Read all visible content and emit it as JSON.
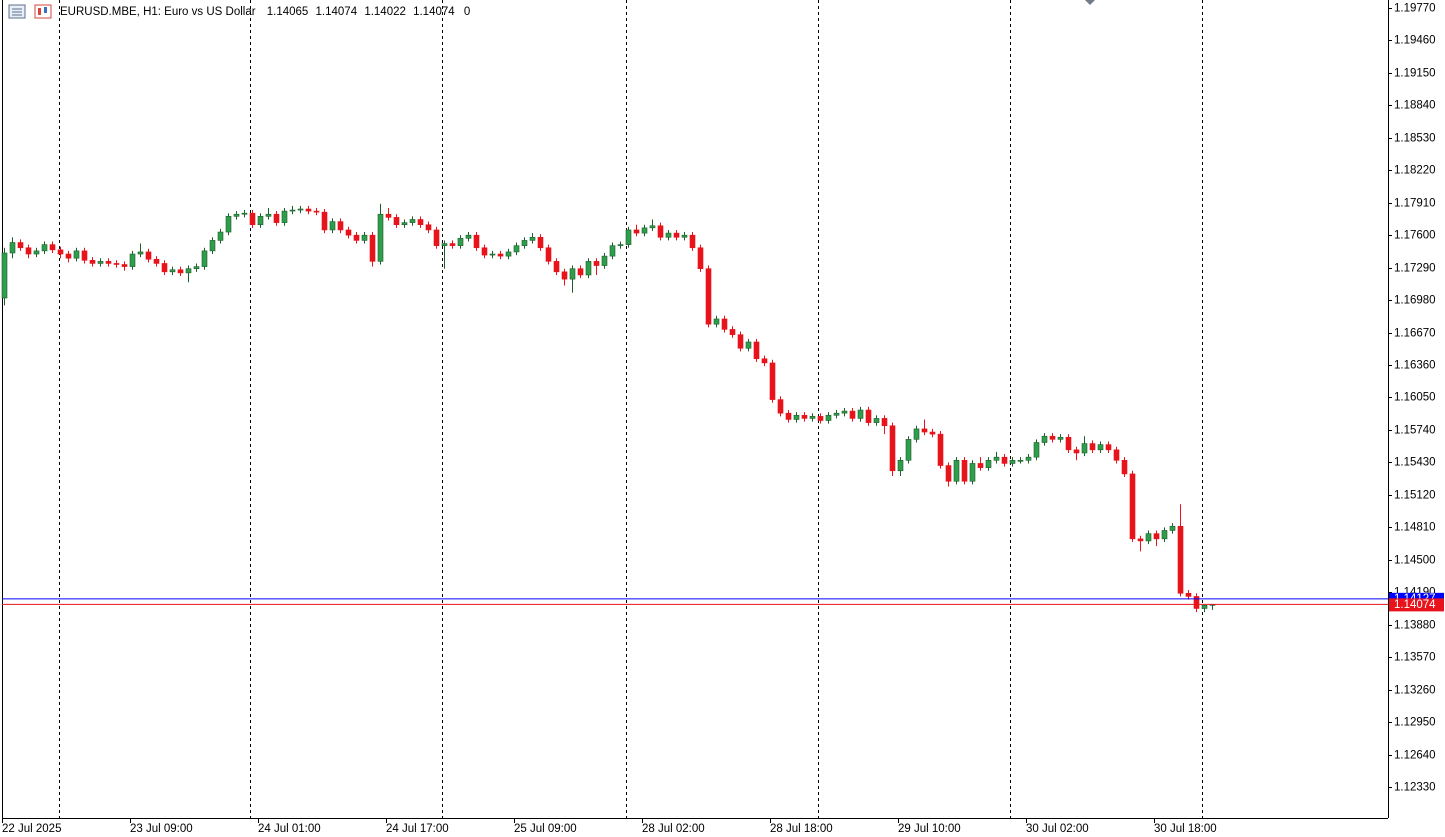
{
  "chart_data": {
    "type": "candlestick",
    "title": "EURUSD.MBE, H1:  Euro vs US Dollar",
    "info_suffix": "0",
    "up_color": "#2e9e4a",
    "down_color": "#e8131b",
    "ask_color": "#0000ff",
    "bid_color": "#e8131b",
    "ask": 1.14127,
    "ylim": [
      1.12034,
      1.19846
    ],
    "yticks": [
      {
        "value": 1.1977,
        "label": "1.19770"
      },
      {
        "value": 1.1946,
        "label": "1.19460"
      },
      {
        "value": 1.1915,
        "label": "1.19150"
      },
      {
        "value": 1.1884,
        "label": "1.18840"
      },
      {
        "value": 1.1853,
        "label": "1.18530"
      },
      {
        "value": 1.1822,
        "label": "1.18220"
      },
      {
        "value": 1.1791,
        "label": "1.17910"
      },
      {
        "value": 1.176,
        "label": "1.17600"
      },
      {
        "value": 1.1729,
        "label": "1.17290"
      },
      {
        "value": 1.1698,
        "label": "1.16980"
      },
      {
        "value": 1.1667,
        "label": "1.16670"
      },
      {
        "value": 1.1636,
        "label": "1.16360"
      },
      {
        "value": 1.1605,
        "label": "1.16050"
      },
      {
        "value": 1.1574,
        "label": "1.15740"
      },
      {
        "value": 1.1543,
        "label": "1.15430"
      },
      {
        "value": 1.1512,
        "label": "1.15120"
      },
      {
        "value": 1.1481,
        "label": "1.14810"
      },
      {
        "value": 1.145,
        "label": "1.14500"
      },
      {
        "value": 1.1419,
        "label": "1.14190"
      },
      {
        "value": 1.1388,
        "label": "1.13880"
      },
      {
        "value": 1.1357,
        "label": "1.13570"
      },
      {
        "value": 1.1326,
        "label": "1.13260"
      },
      {
        "value": 1.1295,
        "label": "1.12950"
      },
      {
        "value": 1.1264,
        "label": "1.12640"
      },
      {
        "value": 1.1233,
        "label": "1.12330"
      }
    ],
    "categories": [
      "22 Jul 2025",
      null,
      null,
      null,
      null,
      null,
      null,
      null,
      null,
      null,
      null,
      null,
      null,
      null,
      null,
      null,
      "23 Jul 09:00",
      null,
      null,
      null,
      null,
      null,
      null,
      null,
      null,
      null,
      null,
      null,
      null,
      null,
      null,
      null,
      "24 Jul 01:00",
      null,
      null,
      null,
      null,
      null,
      null,
      null,
      null,
      null,
      null,
      null,
      null,
      null,
      null,
      null,
      "24 Jul 17:00",
      null,
      null,
      null,
      null,
      null,
      null,
      null,
      null,
      null,
      null,
      null,
      null,
      null,
      null,
      null,
      "25 Jul 09:00",
      null,
      null,
      null,
      null,
      null,
      null,
      null,
      null,
      null,
      null,
      null,
      null,
      null,
      null,
      null,
      "28 Jul 02:00",
      null,
      null,
      null,
      null,
      null,
      null,
      null,
      null,
      null,
      null,
      null,
      null,
      null,
      null,
      null,
      "28 Jul 18:00",
      null,
      null,
      null,
      null,
      null,
      null,
      null,
      null,
      null,
      null,
      null,
      null,
      null,
      null,
      null,
      "29 Jul 10:00",
      null,
      null,
      null,
      null,
      null,
      null,
      null,
      null,
      null,
      null,
      null,
      null,
      null,
      null,
      null,
      "30 Jul 02:00",
      null,
      null,
      null,
      null,
      null,
      null,
      null,
      null,
      null,
      null,
      null,
      null,
      null,
      null,
      null,
      "30 Jul 18:00",
      null,
      null,
      null,
      null,
      null,
      null,
      null
    ],
    "open": [
      1.17,
      1.1743,
      1.1753,
      1.1748,
      1.1742,
      1.1745,
      1.1751,
      1.1746,
      1.1742,
      1.1738,
      1.1745,
      1.1736,
      1.1733,
      1.1735,
      1.1733,
      1.1732,
      1.173,
      1.1742,
      1.1744,
      1.1737,
      1.1733,
      1.1725,
      1.1727,
      1.1724,
      1.1728,
      1.173,
      1.1745,
      1.1755,
      1.1763,
      1.1778,
      1.178,
      1.1781,
      1.177,
      1.1778,
      1.178,
      1.1772,
      1.1783,
      1.1784,
      1.1785,
      1.1783,
      1.1782,
      1.1765,
      1.1773,
      1.1765,
      1.176,
      1.1755,
      1.176,
      1.1735,
      1.178,
      1.1777,
      1.177,
      1.1772,
      1.1775,
      1.177,
      1.1765,
      1.175,
      1.1752,
      1.175,
      1.1757,
      1.176,
      1.1748,
      1.1741,
      1.1742,
      1.174,
      1.1744,
      1.175,
      1.1755,
      1.1758,
      1.1748,
      1.1735,
      1.1725,
      1.1718,
      1.1728,
      1.1722,
      1.1735,
      1.1731,
      1.174,
      1.175,
      1.1751,
      1.1765,
      1.1762,
      1.1767,
      1.1769,
      1.1758,
      1.1762,
      1.1758,
      1.176,
      1.1748,
      1.1728,
      1.1675,
      1.168,
      1.167,
      1.1665,
      1.1652,
      1.1658,
      1.1642,
      1.1638,
      1.1603,
      1.159,
      1.1584,
      1.1588,
      1.1585,
      1.1587,
      1.1583,
      1.1588,
      1.159,
      1.1592,
      1.1585,
      1.1593,
      1.1581,
      1.1585,
      1.1578,
      1.1535,
      1.1545,
      1.1565,
      1.1575,
      1.1572,
      1.157,
      1.154,
      1.1525,
      1.1545,
      1.1525,
      1.1542,
      1.1538,
      1.1545,
      1.1548,
      1.1542,
      1.1545,
      1.1545,
      1.1548,
      1.1562,
      1.1568,
      1.1565,
      1.1567,
      1.1555,
      1.1552,
      1.1561,
      1.1555,
      1.156,
      1.1555,
      1.1545,
      1.1532,
      1.147,
      1.1468,
      1.1475,
      1.147,
      1.1478,
      1.1482,
      1.1418,
      1.1415,
      1.14035,
      1.14065
    ],
    "high": [
      1.1748,
      1.1758,
      1.1756,
      1.1751,
      1.1748,
      1.1754,
      1.1754,
      1.1749,
      1.1745,
      1.1748,
      1.1748,
      1.1739,
      1.1738,
      1.1738,
      1.1736,
      1.1735,
      1.1745,
      1.1752,
      1.1747,
      1.174,
      1.1736,
      1.173,
      1.173,
      1.1731,
      1.1733,
      1.1748,
      1.1758,
      1.1766,
      1.1781,
      1.1783,
      1.1784,
      1.1784,
      1.1781,
      1.1786,
      1.1783,
      1.1786,
      1.1788,
      1.1788,
      1.1788,
      1.1786,
      1.1785,
      1.1776,
      1.1776,
      1.1768,
      1.1763,
      1.1763,
      1.1763,
      1.179,
      1.1786,
      1.178,
      1.1775,
      1.1778,
      1.1778,
      1.1773,
      1.1768,
      1.1755,
      1.1755,
      1.176,
      1.1763,
      1.1763,
      1.1751,
      1.1745,
      1.1745,
      1.1747,
      1.1753,
      1.1758,
      1.1762,
      1.1761,
      1.1751,
      1.1738,
      1.1728,
      1.1731,
      1.1731,
      1.1738,
      1.1738,
      1.1743,
      1.1753,
      1.1754,
      1.1768,
      1.177,
      1.177,
      1.1775,
      1.1772,
      1.1765,
      1.1765,
      1.1763,
      1.1763,
      1.1751,
      1.1731,
      1.1683,
      1.1683,
      1.1673,
      1.1668,
      1.1661,
      1.1661,
      1.1645,
      1.1641,
      1.1606,
      1.1593,
      1.1591,
      1.1591,
      1.159,
      1.159,
      1.1591,
      1.1593,
      1.1595,
      1.1595,
      1.1596,
      1.1596,
      1.1588,
      1.1588,
      1.1581,
      1.1548,
      1.1568,
      1.1578,
      1.1584,
      1.1575,
      1.1573,
      1.1543,
      1.1548,
      1.1548,
      1.1545,
      1.1548,
      1.1548,
      1.1553,
      1.1551,
      1.1548,
      1.1548,
      1.1551,
      1.1565,
      1.1571,
      1.1571,
      1.157,
      1.157,
      1.1558,
      1.1568,
      1.1564,
      1.1563,
      1.1563,
      1.1558,
      1.1548,
      1.1535,
      1.1473,
      1.1478,
      1.1478,
      1.1481,
      1.1485,
      1.1503,
      1.1421,
      1.1418,
      1.14068,
      1.14074
    ],
    "low": [
      1.1693,
      1.1738,
      1.1745,
      1.1738,
      1.1739,
      1.1742,
      1.1743,
      1.1738,
      1.1734,
      1.1735,
      1.1733,
      1.173,
      1.173,
      1.173,
      1.1729,
      1.1726,
      1.1727,
      1.1739,
      1.1734,
      1.173,
      1.1722,
      1.1722,
      1.1721,
      1.1715,
      1.1725,
      1.1727,
      1.1742,
      1.1752,
      1.176,
      1.1775,
      1.1777,
      1.1767,
      1.1767,
      1.1775,
      1.1769,
      1.1769,
      1.178,
      1.1781,
      1.178,
      1.1779,
      1.1762,
      1.1762,
      1.1762,
      1.1757,
      1.1752,
      1.1752,
      1.173,
      1.1732,
      1.1774,
      1.1767,
      1.1767,
      1.1769,
      1.1767,
      1.1762,
      1.1747,
      1.1728,
      1.1747,
      1.1747,
      1.1754,
      1.1745,
      1.1738,
      1.1738,
      1.1737,
      1.1737,
      1.1741,
      1.1747,
      1.1752,
      1.1745,
      1.1732,
      1.1722,
      1.1712,
      1.1705,
      1.1719,
      1.1719,
      1.1722,
      1.1728,
      1.1737,
      1.1747,
      1.1748,
      1.1759,
      1.1759,
      1.1764,
      1.1755,
      1.1755,
      1.1755,
      1.1755,
      1.1745,
      1.1725,
      1.1672,
      1.1672,
      1.1667,
      1.1662,
      1.1649,
      1.1649,
      1.1639,
      1.1635,
      1.16,
      1.1587,
      1.1581,
      1.1581,
      1.1582,
      1.1582,
      1.158,
      1.158,
      1.1585,
      1.1587,
      1.1582,
      1.1582,
      1.1578,
      1.1578,
      1.157,
      1.153,
      1.153,
      1.1542,
      1.1562,
      1.1569,
      1.1567,
      1.1537,
      1.152,
      1.1522,
      1.1522,
      1.1522,
      1.1535,
      1.1535,
      1.1542,
      1.1539,
      1.1539,
      1.1542,
      1.1542,
      1.1545,
      1.1559,
      1.1562,
      1.1562,
      1.1552,
      1.1545,
      1.1549,
      1.1552,
      1.1552,
      1.1552,
      1.1542,
      1.1529,
      1.1467,
      1.1458,
      1.1465,
      1.1463,
      1.1467,
      1.1475,
      1.1415,
      1.1412,
      1.14,
      1.14,
      1.14022
    ],
    "close": [
      1.1743,
      1.1753,
      1.1748,
      1.1742,
      1.1745,
      1.1751,
      1.1746,
      1.1742,
      1.1738,
      1.1745,
      1.1736,
      1.1733,
      1.1735,
      1.1733,
      1.1732,
      1.173,
      1.1742,
      1.1744,
      1.1737,
      1.1733,
      1.1725,
      1.1727,
      1.1724,
      1.1728,
      1.173,
      1.1745,
      1.1755,
      1.1763,
      1.1778,
      1.178,
      1.1781,
      1.177,
      1.1778,
      1.178,
      1.1772,
      1.1783,
      1.1784,
      1.1785,
      1.1783,
      1.1782,
      1.1765,
      1.1773,
      1.1765,
      1.176,
      1.1755,
      1.176,
      1.1735,
      1.178,
      1.1777,
      1.177,
      1.1772,
      1.1775,
      1.177,
      1.1765,
      1.175,
      1.1752,
      1.175,
      1.1757,
      1.176,
      1.1748,
      1.1741,
      1.1742,
      1.174,
      1.1744,
      1.175,
      1.1755,
      1.1758,
      1.1748,
      1.1735,
      1.1725,
      1.1718,
      1.1728,
      1.1722,
      1.1735,
      1.1731,
      1.174,
      1.175,
      1.1751,
      1.1765,
      1.1762,
      1.1767,
      1.1769,
      1.1758,
      1.1762,
      1.1758,
      1.176,
      1.1748,
      1.1728,
      1.1675,
      1.168,
      1.167,
      1.1665,
      1.1652,
      1.1658,
      1.1642,
      1.1638,
      1.1603,
      1.159,
      1.1584,
      1.1588,
      1.1585,
      1.1587,
      1.1583,
      1.1588,
      1.159,
      1.1592,
      1.1585,
      1.1593,
      1.1581,
      1.1585,
      1.1578,
      1.1535,
      1.1545,
      1.1565,
      1.1575,
      1.1572,
      1.157,
      1.154,
      1.1525,
      1.1545,
      1.1525,
      1.1542,
      1.1538,
      1.1545,
      1.1548,
      1.1542,
      1.1545,
      1.1545,
      1.1548,
      1.1562,
      1.1568,
      1.1565,
      1.1567,
      1.1555,
      1.1552,
      1.1561,
      1.1555,
      1.156,
      1.1555,
      1.1545,
      1.1532,
      1.147,
      1.1468,
      1.1475,
      1.147,
      1.1478,
      1.1482,
      1.1418,
      1.1415,
      1.14035,
      1.14065,
      1.14074
    ]
  }
}
